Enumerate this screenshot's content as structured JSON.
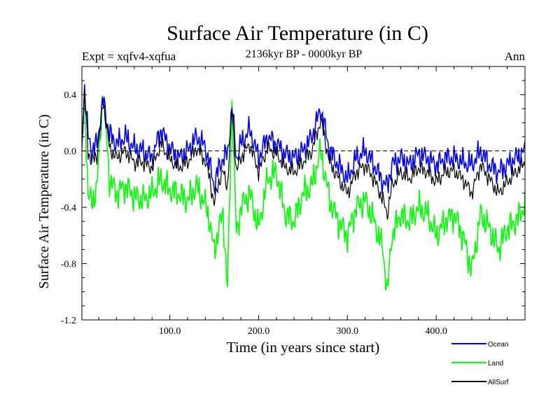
{
  "chart_data": {
    "type": "line",
    "title": "Surface Air Temperature (in C)",
    "subtitle": "2136kyr BP - 0000kyr BP",
    "left_label": "Expt = xqfv4-xqfua",
    "right_label": "Ann",
    "xlabel": "Time (in years since start)",
    "ylabel": "Surface Air Temperature (in C)",
    "xlim": [
      1,
      500
    ],
    "ylim": [
      -1.2,
      0.6
    ],
    "xticks": [
      100,
      200,
      300,
      400
    ],
    "xtick_labels": [
      "100.0",
      "200.0",
      "300.0",
      "400.0"
    ],
    "yticks": [
      -1.2,
      -0.8,
      -0.4,
      0.0,
      0.4
    ],
    "ytick_labels": [
      "-1.2",
      "-0.8",
      "-0.4",
      "0.0",
      "0.4"
    ],
    "zero_line": true,
    "legend_position": "bottom-right",
    "series": [
      {
        "name": "Ocean",
        "color": "#0000ff",
        "x": [
          1,
          4,
          8,
          12,
          18,
          25,
          32,
          40,
          50,
          60,
          70,
          80,
          90,
          100,
          110,
          120,
          130,
          140,
          145,
          150,
          155,
          160,
          165,
          170,
          175,
          180,
          190,
          200,
          210,
          220,
          230,
          240,
          250,
          260,
          270,
          280,
          290,
          300,
          310,
          320,
          330,
          340,
          345,
          350,
          360,
          370,
          380,
          390,
          400,
          410,
          420,
          430,
          440,
          450,
          460,
          470,
          480,
          490,
          500
        ],
        "values": [
          0.05,
          0.45,
          0.1,
          0.0,
          0.05,
          0.36,
          0.12,
          0.05,
          0.1,
          0.02,
          0.0,
          -0.05,
          0.15,
          0.02,
          -0.05,
          0.0,
          0.1,
          0.03,
          -0.1,
          -0.25,
          -0.12,
          -0.05,
          -0.02,
          0.3,
          -0.05,
          0.05,
          0.15,
          -0.05,
          0.1,
          0.05,
          -0.02,
          -0.05,
          0.0,
          0.1,
          0.3,
          0.0,
          -0.1,
          -0.2,
          -0.05,
          0.0,
          -0.1,
          -0.22,
          -0.25,
          -0.1,
          -0.05,
          -0.1,
          -0.02,
          -0.05,
          -0.1,
          -0.05,
          -0.05,
          -0.08,
          -0.1,
          0.0,
          -0.1,
          -0.15,
          -0.1,
          -0.05,
          0.0
        ]
      },
      {
        "name": "Land",
        "color": "#00ff00",
        "x": [
          1,
          4,
          8,
          12,
          18,
          25,
          32,
          40,
          50,
          60,
          70,
          80,
          90,
          100,
          110,
          120,
          130,
          140,
          145,
          150,
          155,
          160,
          165,
          170,
          175,
          180,
          190,
          200,
          210,
          220,
          230,
          240,
          250,
          260,
          270,
          280,
          290,
          300,
          310,
          320,
          330,
          340,
          345,
          350,
          360,
          370,
          380,
          390,
          400,
          410,
          420,
          430,
          440,
          450,
          460,
          470,
          480,
          490,
          500
        ],
        "values": [
          0.1,
          0.38,
          -0.3,
          -0.38,
          -0.25,
          0.45,
          -0.2,
          -0.3,
          -0.25,
          -0.32,
          -0.35,
          -0.3,
          -0.2,
          -0.28,
          -0.3,
          -0.35,
          -0.25,
          -0.38,
          -0.5,
          -0.72,
          -0.55,
          -0.45,
          -0.99,
          0.35,
          -0.6,
          -0.4,
          -0.3,
          -0.55,
          -0.2,
          -0.15,
          -0.45,
          -0.5,
          -0.3,
          -0.25,
          0.0,
          -0.35,
          -0.5,
          -0.6,
          -0.4,
          -0.35,
          -0.5,
          -0.7,
          -1.01,
          -0.6,
          -0.45,
          -0.5,
          -0.4,
          -0.45,
          -0.6,
          -0.5,
          -0.45,
          -0.6,
          -0.85,
          -0.45,
          -0.55,
          -0.7,
          -0.55,
          -0.5,
          -0.38
        ]
      },
      {
        "name": "AllSurf",
        "color": "#000000",
        "x": [
          1,
          4,
          8,
          12,
          18,
          25,
          32,
          40,
          50,
          60,
          70,
          80,
          90,
          100,
          110,
          120,
          130,
          140,
          145,
          150,
          155,
          160,
          165,
          170,
          175,
          180,
          190,
          200,
          210,
          220,
          230,
          240,
          250,
          260,
          270,
          280,
          290,
          300,
          310,
          320,
          330,
          340,
          345,
          350,
          360,
          370,
          380,
          390,
          400,
          410,
          420,
          430,
          440,
          450,
          460,
          470,
          480,
          490,
          500
        ],
        "values": [
          0.06,
          0.42,
          0.0,
          -0.08,
          -0.03,
          0.35,
          0.02,
          -0.05,
          0.0,
          -0.08,
          -0.08,
          -0.12,
          0.05,
          -0.06,
          -0.12,
          -0.08,
          0.02,
          -0.07,
          -0.2,
          -0.38,
          -0.22,
          -0.15,
          -0.25,
          0.3,
          -0.15,
          -0.05,
          0.05,
          -0.15,
          0.02,
          -0.02,
          -0.12,
          -0.15,
          -0.08,
          0.0,
          0.22,
          -0.08,
          -0.2,
          -0.3,
          -0.15,
          -0.1,
          -0.2,
          -0.35,
          -0.45,
          -0.25,
          -0.15,
          -0.2,
          -0.12,
          -0.15,
          -0.22,
          -0.15,
          -0.14,
          -0.2,
          -0.3,
          -0.1,
          -0.2,
          -0.3,
          -0.22,
          -0.15,
          -0.08
        ]
      }
    ]
  }
}
